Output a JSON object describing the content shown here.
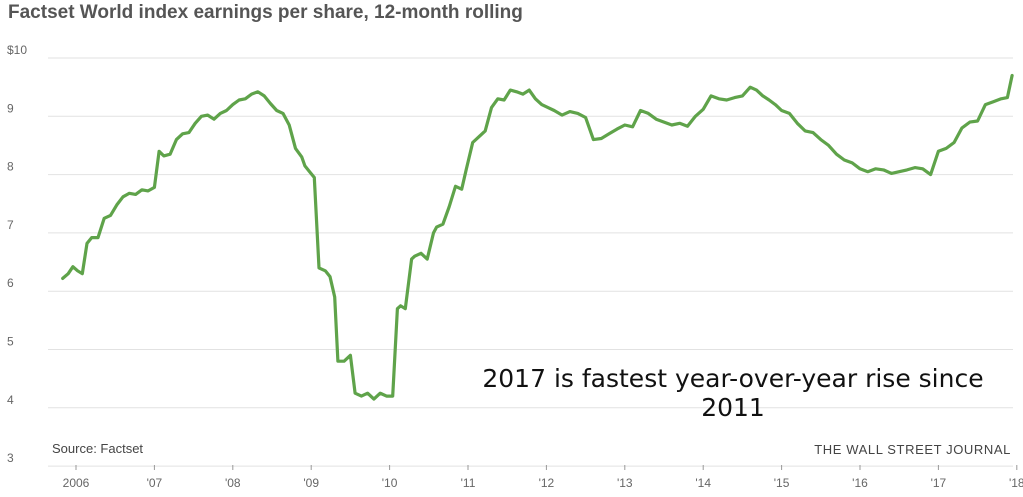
{
  "chart_data": {
    "type": "line",
    "title": "Factset World index earnings per share, 12-month rolling",
    "source": "Source: Factset",
    "credit": "THE WALL STREET JOURNAL",
    "annotation": "2017 is fastest year-over-year rise since 2011",
    "color": "#5fa34a",
    "grid": true,
    "ylim": [
      3,
      10
    ],
    "xlim": [
      2005.7,
      2018.05
    ],
    "y_ticks": [
      {
        "value": 10,
        "label": "$10"
      },
      {
        "value": 9,
        "label": "9"
      },
      {
        "value": 8,
        "label": "8"
      },
      {
        "value": 7,
        "label": "7"
      },
      {
        "value": 6,
        "label": "6"
      },
      {
        "value": 5,
        "label": "5"
      },
      {
        "value": 4,
        "label": "4"
      },
      {
        "value": 3,
        "label": "3"
      }
    ],
    "x_ticks": [
      {
        "value": 2006,
        "label": "2006"
      },
      {
        "value": 2007,
        "label": "'07"
      },
      {
        "value": 2008,
        "label": "'08"
      },
      {
        "value": 2009,
        "label": "'09"
      },
      {
        "value": 2010,
        "label": "'10"
      },
      {
        "value": 2011,
        "label": "'11"
      },
      {
        "value": 2012,
        "label": "'12"
      },
      {
        "value": 2013,
        "label": "'13"
      },
      {
        "value": 2014,
        "label": "'14"
      },
      {
        "value": 2015,
        "label": "'15"
      },
      {
        "value": 2016,
        "label": "'16"
      },
      {
        "value": 2017,
        "label": "'17"
      },
      {
        "value": 2018,
        "label": "'18"
      }
    ],
    "x": [
      2005.83,
      2005.9,
      2005.96,
      2006.02,
      2006.08,
      2006.14,
      2006.2,
      2006.28,
      2006.36,
      2006.44,
      2006.52,
      2006.6,
      2006.68,
      2006.76,
      2006.84,
      2006.92,
      2007.0,
      2007.06,
      2007.12,
      2007.2,
      2007.28,
      2007.36,
      2007.44,
      2007.52,
      2007.6,
      2007.68,
      2007.76,
      2007.84,
      2007.92,
      2008.0,
      2008.08,
      2008.16,
      2008.24,
      2008.32,
      2008.4,
      2008.48,
      2008.56,
      2008.64,
      2008.72,
      2008.8,
      2008.88,
      2008.92,
      2008.98,
      2009.04,
      2009.1,
      2009.18,
      2009.24,
      2009.3,
      2009.34,
      2009.42,
      2009.5,
      2009.56,
      2009.64,
      2009.72,
      2009.8,
      2009.88,
      2009.96,
      2010.04,
      2010.1,
      2010.14,
      2010.2,
      2010.28,
      2010.32,
      2010.4,
      2010.48,
      2010.56,
      2010.6,
      2010.68,
      2010.76,
      2010.84,
      2010.92,
      2010.98,
      2011.06,
      2011.14,
      2011.22,
      2011.3,
      2011.38,
      2011.46,
      2011.54,
      2011.62,
      2011.7,
      2011.78,
      2011.86,
      2011.94,
      2012.02,
      2012.1,
      2012.2,
      2012.3,
      2012.4,
      2012.5,
      2012.6,
      2012.7,
      2012.8,
      2012.9,
      2013.0,
      2013.1,
      2013.2,
      2013.3,
      2013.4,
      2013.5,
      2013.6,
      2013.7,
      2013.8,
      2013.9,
      2014.0,
      2014.1,
      2014.2,
      2014.3,
      2014.4,
      2014.5,
      2014.6,
      2014.68,
      2014.76,
      2014.84,
      2014.92,
      2015.0,
      2015.1,
      2015.2,
      2015.3,
      2015.4,
      2015.5,
      2015.6,
      2015.7,
      2015.8,
      2015.9,
      2016.0,
      2016.1,
      2016.2,
      2016.3,
      2016.4,
      2016.5,
      2016.6,
      2016.7,
      2016.8,
      2016.9,
      2017.0,
      2017.1,
      2017.2,
      2017.3,
      2017.4,
      2017.5,
      2017.6,
      2017.7,
      2017.8,
      2017.88,
      2017.94
    ],
    "values": [
      6.22,
      6.3,
      6.42,
      6.35,
      6.3,
      6.82,
      6.92,
      6.92,
      7.25,
      7.3,
      7.48,
      7.62,
      7.68,
      7.66,
      7.74,
      7.72,
      7.78,
      8.4,
      8.32,
      8.35,
      8.6,
      8.7,
      8.72,
      8.88,
      9.0,
      9.02,
      8.95,
      9.05,
      9.1,
      9.2,
      9.28,
      9.3,
      9.38,
      9.42,
      9.35,
      9.22,
      9.1,
      9.05,
      8.85,
      8.45,
      8.3,
      8.15,
      8.05,
      7.95,
      6.4,
      6.35,
      6.25,
      5.9,
      4.8,
      4.8,
      4.9,
      4.25,
      4.2,
      4.25,
      4.15,
      4.25,
      4.2,
      4.2,
      5.7,
      5.75,
      5.7,
      6.55,
      6.6,
      6.65,
      6.55,
      7.0,
      7.1,
      7.15,
      7.45,
      7.8,
      7.75,
      8.1,
      8.55,
      8.65,
      8.75,
      9.15,
      9.3,
      9.28,
      9.45,
      9.42,
      9.38,
      9.45,
      9.3,
      9.2,
      9.15,
      9.1,
      9.02,
      9.08,
      9.05,
      8.98,
      8.6,
      8.62,
      8.7,
      8.78,
      8.85,
      8.82,
      9.1,
      9.05,
      8.95,
      8.9,
      8.85,
      8.88,
      8.83,
      9.0,
      9.12,
      9.35,
      9.3,
      9.28,
      9.32,
      9.35,
      9.5,
      9.45,
      9.35,
      9.28,
      9.2,
      9.1,
      9.05,
      8.88,
      8.75,
      8.72,
      8.6,
      8.5,
      8.35,
      8.25,
      8.2,
      8.1,
      8.05,
      8.1,
      8.08,
      8.02,
      8.05,
      8.08,
      8.12,
      8.1,
      8.0,
      8.4,
      8.45,
      8.55,
      8.8,
      8.9,
      8.92,
      9.2,
      9.25,
      9.3,
      9.32,
      9.7
    ]
  }
}
